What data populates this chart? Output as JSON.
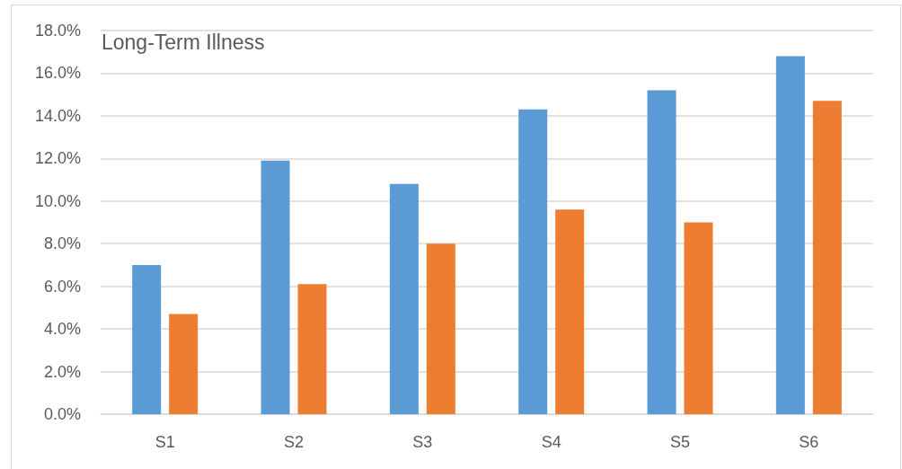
{
  "chart_data": {
    "type": "bar",
    "title": "Long-Term Illness",
    "categories": [
      "S1",
      "S2",
      "S3",
      "S4",
      "S5",
      "S6"
    ],
    "series": [
      {
        "color": "#5b9bd5",
        "values": [
          7.0,
          11.9,
          10.8,
          14.3,
          15.2,
          16.8
        ]
      },
      {
        "color": "#ed7d31",
        "values": [
          4.7,
          6.1,
          8.0,
          9.6,
          9.0,
          14.7
        ]
      }
    ],
    "ylim": [
      0,
      18
    ],
    "yticks": [
      {
        "value": 0,
        "label": "0.0%"
      },
      {
        "value": 2,
        "label": "2.0%"
      },
      {
        "value": 4,
        "label": "4.0%"
      },
      {
        "value": 6,
        "label": "6.0%"
      },
      {
        "value": 8,
        "label": "8.0%"
      },
      {
        "value": 10,
        "label": "10.0%"
      },
      {
        "value": 12,
        "label": "12.0%"
      },
      {
        "value": 14,
        "label": "14.0%"
      },
      {
        "value": 16,
        "label": "16.0%"
      },
      {
        "value": 18,
        "label": "18.0%"
      }
    ],
    "grid": "y"
  }
}
